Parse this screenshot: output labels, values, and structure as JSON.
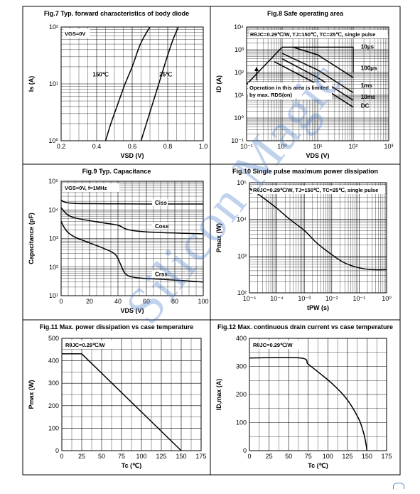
{
  "watermark": "Silicon Magic",
  "chart_data": [
    {
      "type": "line",
      "title": "Fig.7 Typ. forward characteristics of body diode",
      "xlabel": "VSD (V)",
      "ylabel": "Is (A)",
      "xlim": [
        0.2,
        1.0
      ],
      "ylim": [
        1,
        100
      ],
      "yscale": "log",
      "xticks": [
        "0.2",
        "0.4",
        "0.6",
        "0.8",
        "1.0"
      ],
      "yticks": [
        "10⁰",
        "10¹",
        "10²"
      ],
      "annotations": [
        "VGS=0V"
      ],
      "series": [
        {
          "name": "150℃",
          "x": [
            0.45,
            0.48,
            0.52,
            0.56,
            0.6,
            0.64,
            0.67,
            0.7
          ],
          "y": [
            1,
            2,
            4.5,
            10,
            20,
            45,
            70,
            100
          ]
        },
        {
          "name": "25℃",
          "x": [
            0.65,
            0.68,
            0.71,
            0.74,
            0.77,
            0.8,
            0.83,
            0.86
          ],
          "y": [
            1,
            2,
            4,
            8,
            16,
            32,
            60,
            100
          ]
        }
      ]
    },
    {
      "type": "line",
      "title": "Fig.8 Safe operating area",
      "xlabel": "VDS (V)",
      "ylabel": "ID (A)",
      "xscale": "log",
      "yscale": "log",
      "xlim": [
        0.1,
        1000
      ],
      "ylim": [
        0.1,
        10000
      ],
      "xticks": [
        "10⁻¹",
        "10⁰",
        "10¹",
        "10²",
        "10³"
      ],
      "yticks": [
        "10⁻¹",
        "10⁰",
        "10¹",
        "10²",
        "10³",
        "10⁴"
      ],
      "header": "RθJC=0.29℃/W, TJ=150℃, TC=25℃, single pulse",
      "note": "Operation in this area is limited by max. RDS(on)",
      "series": [
        {
          "name": "10μs",
          "x": [
            0.1,
            1,
            100,
            100
          ],
          "y": [
            30,
            1300,
            1300,
            100
          ]
        },
        {
          "name": "100μs",
          "x": [
            2,
            10,
            100,
            100
          ],
          "y": [
            1300,
            600,
            60,
            60
          ]
        },
        {
          "name": "1ms",
          "x": [
            1,
            10,
            100
          ],
          "y": [
            700,
            130,
            13
          ]
        },
        {
          "name": "10ms",
          "x": [
            1,
            10,
            100
          ],
          "y": [
            400,
            60,
            6
          ]
        },
        {
          "name": "DC",
          "x": [
            0.6,
            10,
            100
          ],
          "y": [
            300,
            30,
            3
          ]
        }
      ]
    },
    {
      "type": "line",
      "title": "Fig.9 Typ. Capacitance",
      "xlabel": "VDS (V)",
      "ylabel": "Capacitance (pF)",
      "yscale": "log",
      "xlim": [
        0,
        100
      ],
      "ylim": [
        10,
        100000
      ],
      "xticks": [
        "0",
        "20",
        "40",
        "60",
        "80",
        "100"
      ],
      "yticks": [
        "10¹",
        "10²",
        "10³",
        "10⁴",
        "10⁵"
      ],
      "annotations": [
        "VGS=0V, f=1MHz"
      ],
      "series": [
        {
          "name": "Ciss",
          "x": [
            0,
            2,
            5,
            10,
            20,
            40,
            60,
            80,
            100
          ],
          "y": [
            22000,
            19000,
            17500,
            16800,
            16500,
            16200,
            16000,
            16000,
            16000
          ]
        },
        {
          "name": "Coss",
          "x": [
            0,
            2,
            5,
            10,
            20,
            30,
            40,
            45,
            50,
            60,
            80,
            100
          ],
          "y": [
            12000,
            9000,
            6500,
            5200,
            4200,
            3500,
            2900,
            2200,
            1900,
            1700,
            1550,
            1450
          ]
        },
        {
          "name": "Crss",
          "x": [
            0,
            2,
            5,
            10,
            20,
            30,
            38,
            42,
            45,
            50,
            60,
            80,
            100
          ],
          "y": [
            4000,
            2500,
            1600,
            1100,
            700,
            450,
            280,
            120,
            60,
            45,
            40,
            35,
            30
          ]
        }
      ]
    },
    {
      "type": "line",
      "title": "Fig.10 Single pulse maximum power dissipation",
      "xlabel": "tPW (s)",
      "ylabel": "Pmax (W)",
      "xscale": "log",
      "yscale": "log",
      "xlim": [
        1e-05,
        1
      ],
      "ylim": [
        100,
        100000
      ],
      "xticks": [
        "10⁻⁵",
        "10⁻⁴",
        "10⁻³",
        "10⁻²",
        "10⁻¹",
        "10⁰"
      ],
      "yticks": [
        "10²",
        "10³",
        "10⁴",
        "10⁵"
      ],
      "header": "RθJC=0.29℃/W, TJ=150℃, TC=25℃, single pulse",
      "series": [
        {
          "name": "Pmax",
          "x": [
            1e-05,
            3e-05,
            0.0001,
            0.0003,
            0.001,
            0.003,
            0.01,
            0.03,
            0.1,
            0.3,
            1
          ],
          "y": [
            70000,
            40000,
            20000,
            10000,
            5000,
            2200,
            1100,
            650,
            480,
            430,
            430
          ]
        }
      ]
    },
    {
      "type": "line",
      "title": "Fig.11 Max. power dissipation vs case temperature",
      "xlabel": "Tc (℃)",
      "ylabel": "Pmax (W)",
      "xlim": [
        0,
        175
      ],
      "ylim": [
        0,
        500
      ],
      "xticks": [
        "0",
        "25",
        "50",
        "75",
        "100",
        "125",
        "150",
        "175"
      ],
      "yticks": [
        "0",
        "100",
        "200",
        "300",
        "400",
        "500"
      ],
      "annotations": [
        "RθJC=0.29℃/W"
      ],
      "series": [
        {
          "name": "Pmax",
          "x": [
            0,
            25,
            150
          ],
          "y": [
            431,
            431,
            0
          ]
        }
      ]
    },
    {
      "type": "line",
      "title": "Fig.12 Max. continuous drain current vs case temperature",
      "xlabel": "Tc (℃)",
      "ylabel": "ID,max (A)",
      "xlim": [
        0,
        175
      ],
      "ylim": [
        0,
        400
      ],
      "xticks": [
        "0",
        "25",
        "50",
        "75",
        "100",
        "125",
        "150",
        "175"
      ],
      "yticks": [
        "0",
        "100",
        "200",
        "300",
        "400"
      ],
      "annotations": [
        "RθJC=0.29℃/W"
      ],
      "series": [
        {
          "name": "ID,max",
          "x": [
            0,
            65,
            75,
            90,
            105,
            120,
            130,
            140,
            145,
            148,
            150
          ],
          "y": [
            330,
            330,
            308,
            275,
            240,
            198,
            160,
            110,
            70,
            35,
            0
          ]
        }
      ]
    }
  ]
}
